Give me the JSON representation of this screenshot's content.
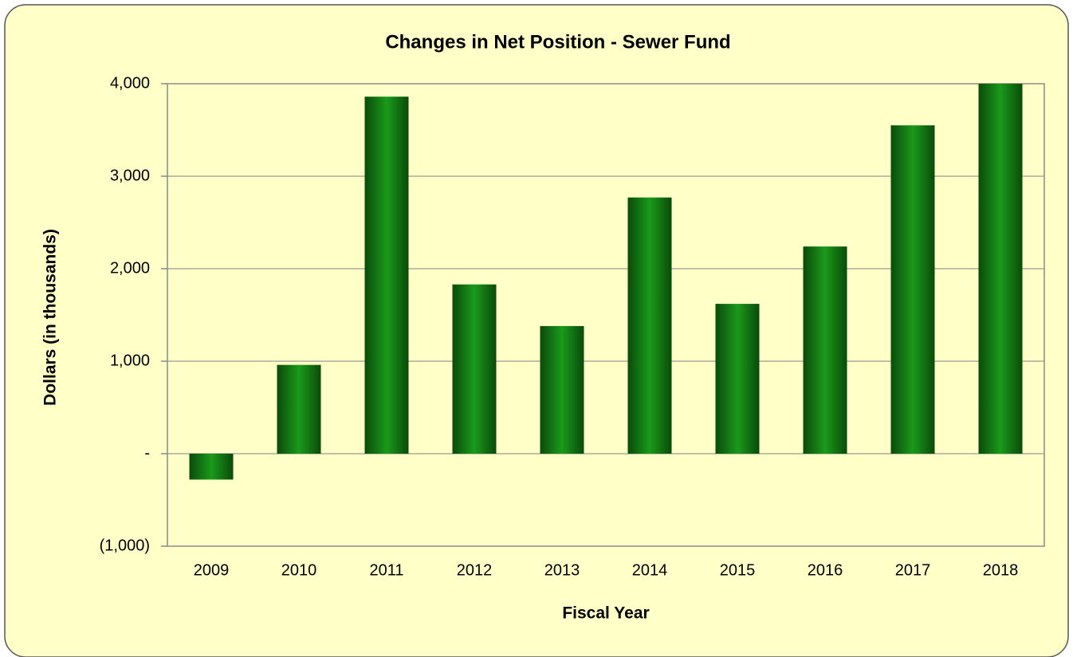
{
  "chart_data": {
    "type": "bar",
    "title": "Changes in Net Position - Sewer Fund",
    "x_label": "Fiscal Year",
    "y_label": "Dollars (in thousands)",
    "categories": [
      "2009",
      "2010",
      "2011",
      "2012",
      "2013",
      "2014",
      "2015",
      "2016",
      "2017",
      "2018"
    ],
    "values": [
      -280,
      960,
      3860,
      1830,
      1380,
      2770,
      1620,
      2240,
      3550,
      4000
    ],
    "color": "#1a9a1a",
    "ylim": [
      -1000,
      4000
    ],
    "yticks": [
      {
        "value": -1000,
        "label": "(1,000)"
      },
      {
        "value": 0,
        "label": "-"
      },
      {
        "value": 1000,
        "label": "1,000"
      },
      {
        "value": 2000,
        "label": "2,000"
      },
      {
        "value": 3000,
        "label": "3,000"
      },
      {
        "value": 4000,
        "label": "4,000"
      }
    ],
    "grid": true
  }
}
